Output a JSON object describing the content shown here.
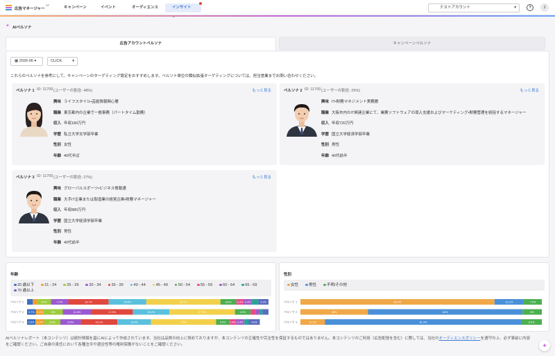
{
  "header": {
    "logo": "広告マネージャー",
    "version": "v2",
    "nav": [
      "キャンペーン",
      "イベント",
      "オーディエンス",
      "インサイト"
    ],
    "account": "テストアカウント",
    "help": "?",
    "avatar": "J"
  },
  "page_title": "AIペルソナ",
  "tabs": [
    "広告アカウントペルソナ",
    "キャンペーンペルソナ"
  ],
  "filters": {
    "month": "2026-06",
    "metric": "CLICK"
  },
  "description": "これらのペルソナを参考にして、キャンペーンのターゲティング設定をおすすめします。ペルソナ単位の類似拡張ターゲティングについては、担当営業までお問い合わせください。",
  "personas": [
    {
      "name": "ペルソナ 1",
      "id": "ID: 11700",
      "share": "(ユーザーの割合: 48%)",
      "more": "もっと見る",
      "fields": [
        [
          "興味",
          "ライフスタイル・芸能情報関心層"
        ],
        [
          "職業",
          "東京都内の企業で一般事務（パートタイム勤務）"
        ],
        [
          "収入",
          "年収180万円"
        ],
        [
          "学歴",
          "私立大学文学部卒業"
        ],
        [
          "性別",
          "女性"
        ],
        [
          "年齢",
          "40代半ば"
        ]
      ]
    },
    {
      "name": "ペルソナ 2",
      "id": "ID: 11700",
      "share": "(ユーザーの割合: 25%)",
      "more": "もっと見る",
      "fields": [
        [
          "興味",
          "IT・財務マネジメント実務層"
        ],
        [
          "職業",
          "大阪市内のIT関連企業にて、業務ソフトウェアの導入支援およびマーケティング・財務管理を統括するマネージャー"
        ],
        [
          "収入",
          "年収720万円"
        ],
        [
          "学歴",
          "国立大学経済学部卒業"
        ],
        [
          "性別",
          "男性"
        ],
        [
          "年齢",
          "40代前半"
        ]
      ]
    },
    {
      "name": "ペルソナ 3",
      "id": "ID: 11700",
      "share": "(ユーザーの割合: 27%)",
      "more": "もっと見る",
      "fields": [
        [
          "興味",
          "グローバルスポーツ・ビジネス情報通"
        ],
        [
          "職業",
          "大手IT企業または製造業の経営企画・財務マネージャー"
        ],
        [
          "収入",
          "年収880万円"
        ],
        [
          "学歴",
          "国立大学経済学部卒業"
        ],
        [
          "性別",
          "男性"
        ],
        [
          "年齢",
          "40代前半"
        ]
      ]
    }
  ],
  "chart_data": [
    {
      "type": "bar",
      "stacked": true,
      "orientation": "horizontal",
      "title": "年齢",
      "categories": [
        "ペルソナ 1",
        "ペルソナ 2",
        "ペルソナ 3"
      ],
      "xlim": [
        0,
        100
      ],
      "series": [
        {
          "name": "20 歳以下",
          "color": "#3b6fc4",
          "values": [
            2.4,
            3.7,
            3.5
          ],
          "value_labels": [
            null,
            "3.7%",
            "3.5%"
          ]
        },
        {
          "name": "21 - 24",
          "color": "#f0a030",
          "values": [
            1.9,
            3.1,
            3.7
          ],
          "value_labels": [
            null,
            "3.1%",
            "3.7%"
          ]
        },
        {
          "name": "25 - 29",
          "color": "#9ccc3c",
          "values": [
            5.6,
            8,
            6.6
          ],
          "value_labels": [
            "5.6%",
            "8%",
            "6.6%"
          ]
        },
        {
          "name": "30 - 34",
          "color": "#9b59d0",
          "values": [
            7.2,
            11.8,
            8.5
          ],
          "value_labels": [
            "7.2%",
            "11.8%",
            "8.5%"
          ]
        },
        {
          "name": "35 - 39",
          "color": "#e0483e",
          "values": [
            16.7,
            17.2,
            15.1
          ],
          "value_labels": [
            "16.7%",
            "17.2%",
            "15.1%"
          ]
        },
        {
          "name": "40 - 44",
          "color": "#5bc0de",
          "values": [
            15.6,
            15.2,
            13.9
          ],
          "value_labels": [
            "15.6%",
            "15.2%",
            "13.9%"
          ]
        },
        {
          "name": "45 - 49",
          "color": "#f2d04b",
          "values": [
            30.7,
            27.1,
            27
          ],
          "value_labels": [
            "30.7%",
            "27.1%",
            "27%"
          ]
        },
        {
          "name": "50 - 54",
          "color": "#4caf50",
          "values": [
            6.6,
            6.5,
            5.5
          ],
          "value_labels": [
            "6.6%",
            "6.5%",
            "5.5%"
          ]
        },
        {
          "name": "55 - 59",
          "color": "#e84a8a",
          "values": [
            3.1,
            2.2,
            2.8
          ],
          "value_labels": [
            "3.1%",
            null,
            "2.8%"
          ]
        },
        {
          "name": "60 - 64",
          "color": "#a05cc8",
          "values": [
            3.4,
            1.5,
            3.4
          ],
          "value_labels": [
            "3.4%",
            null,
            "3.4%"
          ]
        },
        {
          "name": "65 - 69",
          "color": "#26a69a",
          "values": [
            2.6,
            1.2,
            1.8
          ],
          "value_labels": [
            null,
            null,
            null
          ]
        },
        {
          "name": "70 歳以上",
          "color": "#5c6bc0",
          "values": [
            4.2,
            2.5,
            4.6
          ],
          "value_labels": [
            "4.2%",
            null,
            "4.6%"
          ]
        }
      ]
    },
    {
      "type": "bar",
      "stacked": true,
      "orientation": "horizontal",
      "title": "性別",
      "categories": [
        "ペルソナ 1",
        "ペルソナ 2",
        "ペルソナ 3"
      ],
      "xlim": [
        0,
        100
      ],
      "series": [
        {
          "name": "女性",
          "color": "#f0a848",
          "values": [
            80.4,
            28,
            10.2
          ],
          "value_labels": [
            "80.4%",
            "28%",
            "10.2%"
          ]
        },
        {
          "name": "男性",
          "color": "#4a90d9",
          "values": [
            12.1,
            64,
            81.3
          ],
          "value_labels": [
            "12.1%",
            "64%",
            "81.3%"
          ]
        },
        {
          "name": "不明/その他",
          "color": "#4caf50",
          "values": [
            7.5,
            8,
            8.5
          ],
          "value_labels": [
            "7.5%",
            "8%",
            "8.5%"
          ]
        }
      ]
    }
  ],
  "footer": {
    "before": "AIペルソナレポート（本コンテンツ）は統計情報を基にAIによって作成されています。当社は品質の向上に努めておりますが、本コンテンツの正確性や完全性を保証するものではありません。本コンテンツのご利用（広告配信を含む）に際しては、当社の",
    "link": "オーディエンスポリシー",
    "after": "を遵守の上、必ず事前に内容をご確認ください。ご自身の責任において各種法令や適合性等の権利保護がないことをご確認ください。"
  }
}
